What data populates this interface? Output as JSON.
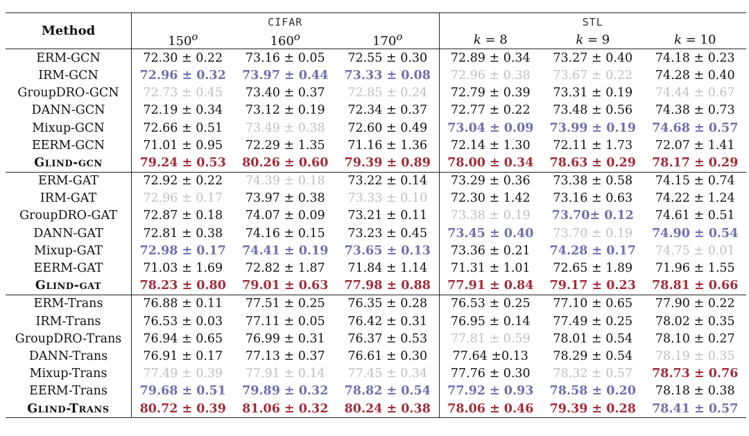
{
  "table": {
    "method_header": "Method",
    "groups": [
      {
        "name": "CIFAR",
        "columns": [
          {
            "base": "150",
            "sup": "o"
          },
          {
            "base": "160",
            "sup": "o"
          },
          {
            "base": "170",
            "sup": "o"
          }
        ]
      },
      {
        "name": "STL",
        "columns": [
          {
            "var": "k",
            "rest": " = 8"
          },
          {
            "var": "k",
            "rest": " = 9"
          },
          {
            "var": "k",
            "rest": " = 10"
          }
        ]
      }
    ],
    "colors": {
      "red": "#a52a36",
      "blue": "#6e6eb0",
      "gray": "#bfbfbf"
    },
    "blocks": [
      {
        "rows": [
          {
            "method": "ERM-GCN",
            "cells": [
              {
                "v": "72.30 ± 0.22",
                "c": "none"
              },
              {
                "v": "73.16 ± 0.05",
                "c": "none"
              },
              {
                "v": "72.55 ± 0.30",
                "c": "none"
              },
              {
                "v": "72.89 ± 0.34",
                "c": "none"
              },
              {
                "v": "73.27 ± 0.40",
                "c": "none"
              },
              {
                "v": "74.18 ± 0.23",
                "c": "none"
              }
            ]
          },
          {
            "method": "IRM-GCN",
            "cells": [
              {
                "v": "72.96 ± 0.32",
                "c": "blue"
              },
              {
                "v": "73.97 ± 0.44",
                "c": "blue"
              },
              {
                "v": "73.33 ± 0.08",
                "c": "blue"
              },
              {
                "v": "72.96 ± 0.38",
                "c": "gray"
              },
              {
                "v": "73.67 ± 0.22",
                "c": "gray"
              },
              {
                "v": "74.28 ± 0.40",
                "c": "none"
              }
            ]
          },
          {
            "method": "GroupDRO-GCN",
            "cells": [
              {
                "v": "72.73 ± 0.45",
                "c": "gray"
              },
              {
                "v": "73.40 ± 0.37",
                "c": "none"
              },
              {
                "v": "72.85 ± 0.24",
                "c": "gray"
              },
              {
                "v": "72.79 ± 0.39",
                "c": "none"
              },
              {
                "v": "73.31 ± 0.19",
                "c": "none"
              },
              {
                "v": "74.44 ± 0.67",
                "c": "gray"
              }
            ]
          },
          {
            "method": "DANN-GCN",
            "cells": [
              {
                "v": "72.19 ± 0.34",
                "c": "none"
              },
              {
                "v": "73.12 ± 0.19",
                "c": "none"
              },
              {
                "v": "72.34 ± 0.37",
                "c": "none"
              },
              {
                "v": "72.77 ± 0.22",
                "c": "none"
              },
              {
                "v": "73.48 ± 0.56",
                "c": "none"
              },
              {
                "v": "74.38 ± 0.73",
                "c": "none"
              }
            ]
          },
          {
            "method": "Mixup-GCN",
            "cells": [
              {
                "v": "72.66 ± 0.51",
                "c": "none"
              },
              {
                "v": "73.49 ± 0.38",
                "c": "gray"
              },
              {
                "v": "72.60 ± 0.49",
                "c": "none"
              },
              {
                "v": "73.04 ± 0.09",
                "c": "blue"
              },
              {
                "v": "73.99 ± 0.19",
                "c": "blue"
              },
              {
                "v": "74.68 ± 0.57",
                "c": "blue"
              }
            ]
          },
          {
            "method": "EERM-GCN",
            "cells": [
              {
                "v": "71.01 ± 0.95",
                "c": "none"
              },
              {
                "v": "72.29 ± 1.35",
                "c": "none"
              },
              {
                "v": "71.16 ± 1.36",
                "c": "none"
              },
              {
                "v": "72.14 ± 1.30",
                "c": "none"
              },
              {
                "v": "72.11 ± 1.73",
                "c": "none"
              },
              {
                "v": "72.07 ± 1.41",
                "c": "none"
              }
            ]
          },
          {
            "method": "GLIND-GCN",
            "glind": {
              "g": "G",
              "lind": "LIND",
              "sep": "-",
              "suffix": "GCN"
            },
            "cells": [
              {
                "v": "79.24 ± 0.53",
                "c": "red"
              },
              {
                "v": "80.26 ± 0.60",
                "c": "red"
              },
              {
                "v": "79.39 ± 0.89",
                "c": "red"
              },
              {
                "v": "78.00 ± 0.34",
                "c": "red"
              },
              {
                "v": "78.63 ± 0.29",
                "c": "red"
              },
              {
                "v": "78.17 ± 0.29",
                "c": "red"
              }
            ]
          }
        ]
      },
      {
        "rows": [
          {
            "method": "ERM-GAT",
            "cells": [
              {
                "v": "72.92 ± 0.22",
                "c": "none"
              },
              {
                "v": "74.39 ± 0.18",
                "c": "gray"
              },
              {
                "v": "73.22 ± 0.14",
                "c": "none"
              },
              {
                "v": "73.29 ± 0.36",
                "c": "none"
              },
              {
                "v": "73.38 ± 0.58",
                "c": "none"
              },
              {
                "v": "74.15 ± 0.74",
                "c": "none"
              }
            ]
          },
          {
            "method": "IRM-GAT",
            "cells": [
              {
                "v": "72.96 ± 0.17",
                "c": "gray"
              },
              {
                "v": "73.97 ± 0.38",
                "c": "none"
              },
              {
                "v": "73.33 ± 0.10",
                "c": "gray"
              },
              {
                "v": "72.30 ± 1.42",
                "c": "none"
              },
              {
                "v": "73.16 ± 0.63",
                "c": "none"
              },
              {
                "v": "74.22 ± 1.24",
                "c": "none"
              }
            ]
          },
          {
            "method": "GroupDRO-GAT",
            "cells": [
              {
                "v": "72.87 ± 0.18",
                "c": "none"
              },
              {
                "v": "74.07 ± 0.09",
                "c": "none"
              },
              {
                "v": "73.21 ± 0.11",
                "c": "none"
              },
              {
                "v": "73.38 ± 0.19",
                "c": "gray"
              },
              {
                "v": "73.70± 0.12",
                "c": "blue"
              },
              {
                "v": "74.61 ± 0.51",
                "c": "none"
              }
            ]
          },
          {
            "method": "DANN-GAT",
            "cells": [
              {
                "v": "72.81 ± 0.38",
                "c": "none"
              },
              {
                "v": "74.16 ± 0.15",
                "c": "none"
              },
              {
                "v": "73.23 ± 0.45",
                "c": "none"
              },
              {
                "v": "73.45 ± 0.40",
                "c": "blue"
              },
              {
                "v": "73.70 ± 0.19",
                "c": "gray"
              },
              {
                "v": "74.90 ± 0.54",
                "c": "blue"
              }
            ]
          },
          {
            "method": "Mixup-GAT",
            "cells": [
              {
                "v": "72.98 ± 0.17",
                "c": "blue"
              },
              {
                "v": "74.41 ± 0.19",
                "c": "blue"
              },
              {
                "v": "73.65 ± 0.13",
                "c": "blue"
              },
              {
                "v": "73.36 ± 0.21",
                "c": "none"
              },
              {
                "v": "74.28 ± 0.17",
                "c": "blue"
              },
              {
                "v": "74.75 ± 0.01",
                "c": "gray"
              }
            ]
          },
          {
            "method": "EERM-GAT",
            "cells": [
              {
                "v": "71.03 ± 1.69",
                "c": "none"
              },
              {
                "v": "72.82 ± 1.87",
                "c": "none"
              },
              {
                "v": "71.84 ± 1.14",
                "c": "none"
              },
              {
                "v": "71.31 ± 1.01",
                "c": "none"
              },
              {
                "v": "72.65 ± 1.89",
                "c": "none"
              },
              {
                "v": "71.96 ± 1.55",
                "c": "none"
              }
            ]
          },
          {
            "method": "GLIND-GAT",
            "glind": {
              "g": "G",
              "lind": "LIND",
              "sep": "-",
              "suffix": "GAT"
            },
            "cells": [
              {
                "v": "78.23 ± 0.80",
                "c": "red"
              },
              {
                "v": "79.01 ± 0.63",
                "c": "red"
              },
              {
                "v": "77.98 ± 0.88",
                "c": "red"
              },
              {
                "v": "77.91 ± 0.84",
                "c": "red"
              },
              {
                "v": "79.17 ± 0.23",
                "c": "red"
              },
              {
                "v": "78.81 ± 0.66",
                "c": "red"
              }
            ]
          }
        ]
      },
      {
        "rows": [
          {
            "method": "ERM-Trans",
            "cells": [
              {
                "v": "76.88 ± 0.11",
                "c": "none"
              },
              {
                "v": "77.51 ± 0.25",
                "c": "none"
              },
              {
                "v": "76.35 ± 0.28",
                "c": "none"
              },
              {
                "v": "76.53 ± 0.25",
                "c": "none"
              },
              {
                "v": "77.10 ± 0.65",
                "c": "none"
              },
              {
                "v": "77.90 ± 0.22",
                "c": "none"
              }
            ]
          },
          {
            "method": "IRM-Trans",
            "cells": [
              {
                "v": "76.53 ± 0.03",
                "c": "none"
              },
              {
                "v": "77.11 ± 0.05",
                "c": "none"
              },
              {
                "v": "76.42 ± 0.31",
                "c": "none"
              },
              {
                "v": "76.95 ± 0.14",
                "c": "none"
              },
              {
                "v": "77.49 ± 0.25",
                "c": "none"
              },
              {
                "v": "78.02 ± 0.35",
                "c": "none"
              }
            ]
          },
          {
            "method": "GroupDRO-Trans",
            "cells": [
              {
                "v": "76.94 ± 0.65",
                "c": "none"
              },
              {
                "v": "76.99 ± 0.31",
                "c": "none"
              },
              {
                "v": "76.37 ± 0.53",
                "c": "none"
              },
              {
                "v": "77.81 ± 0.59",
                "c": "gray"
              },
              {
                "v": "78.01 ± 0.54",
                "c": "none"
              },
              {
                "v": "78.10 ± 0.27",
                "c": "none"
              }
            ]
          },
          {
            "method": "DANN-Trans",
            "cells": [
              {
                "v": "76.91 ± 0.17",
                "c": "none"
              },
              {
                "v": "77.13 ± 0.37",
                "c": "none"
              },
              {
                "v": "76.61 ± 0.30",
                "c": "none"
              },
              {
                "v": "77.64 ±0.13",
                "c": "none"
              },
              {
                "v": "78.29 ± 0.54",
                "c": "none"
              },
              {
                "v": "78.19 ± 0.35",
                "c": "gray"
              }
            ]
          },
          {
            "method": "Mixup-Trans",
            "cells": [
              {
                "v": "77.49 ± 0.39",
                "c": "gray"
              },
              {
                "v": "77.91 ± 0.14",
                "c": "gray"
              },
              {
                "v": "77.45 ± 0.34",
                "c": "gray"
              },
              {
                "v": "77.76 ± 0.30",
                "c": "none"
              },
              {
                "v": "78.32 ± 0.57",
                "c": "gray"
              },
              {
                "v": "78.73 ± 0.76",
                "c": "red"
              }
            ]
          },
          {
            "method": "EERM-Trans",
            "cells": [
              {
                "v": "79.68 ± 0.51",
                "c": "blue"
              },
              {
                "v": "79.89 ± 0.32",
                "c": "blue"
              },
              {
                "v": "78.82 ± 0.54",
                "c": "blue"
              },
              {
                "v": "77.92 ± 0.93",
                "c": "blue"
              },
              {
                "v": "78.58 ± 0.20",
                "c": "blue"
              },
              {
                "v": "78.18 ± 0.38",
                "c": "none"
              }
            ]
          },
          {
            "method": "GLIND-TRANS",
            "glind": {
              "g": "G",
              "lind": "LIND",
              "sep": "-",
              "suffix": "T",
              "suffix_rest": "RANS"
            },
            "cells": [
              {
                "v": "80.72 ± 0.39",
                "c": "red"
              },
              {
                "v": "81.06 ± 0.32",
                "c": "red"
              },
              {
                "v": "80.24 ± 0.38",
                "c": "red"
              },
              {
                "v": "78.06 ± 0.46",
                "c": "red"
              },
              {
                "v": "79.39 ± 0.28",
                "c": "red"
              },
              {
                "v": "78.41 ± 0.57",
                "c": "blue"
              }
            ]
          }
        ]
      }
    ]
  }
}
